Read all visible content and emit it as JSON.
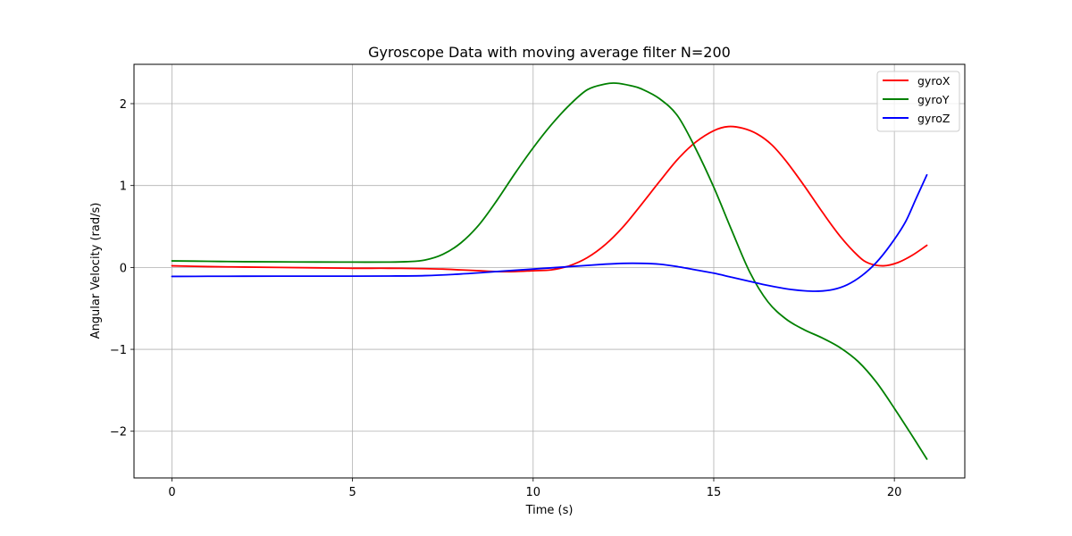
{
  "chart_data": {
    "type": "line",
    "title": "Gyroscope Data with moving average filter N=200",
    "xlabel": "Time (s)",
    "ylabel": "Angular Velocity (rad/s)",
    "xlim": [
      -1.05,
      21.95
    ],
    "ylim": [
      -2.57,
      2.48
    ],
    "xticks": [
      0,
      5,
      10,
      15,
      20
    ],
    "xtick_labels": [
      "0",
      "5",
      "10",
      "15",
      "20"
    ],
    "yticks": [
      -2,
      -1,
      0,
      1,
      2
    ],
    "ytick_labels": [
      "−2",
      "−1",
      "0",
      "1",
      "2"
    ],
    "grid": true,
    "legend_position": "top-right",
    "series": [
      {
        "name": "gyroX",
        "color": "#ff0000",
        "x": [
          0,
          1,
          2,
          3,
          4,
          5,
          6,
          7,
          7.5,
          8,
          8.5,
          9,
          9.5,
          10,
          10.5,
          11,
          11.5,
          12,
          12.5,
          13,
          13.5,
          14,
          14.5,
          15,
          15.4,
          15.8,
          16.2,
          16.6,
          17,
          17.5,
          18,
          18.5,
          19,
          19.3,
          19.7,
          20.1,
          20.5,
          20.9
        ],
        "y": [
          0.02,
          0.01,
          0.005,
          0.0,
          -0.005,
          -0.01,
          -0.01,
          -0.015,
          -0.02,
          -0.03,
          -0.04,
          -0.05,
          -0.05,
          -0.04,
          -0.03,
          0.02,
          0.12,
          0.28,
          0.5,
          0.77,
          1.05,
          1.32,
          1.53,
          1.67,
          1.72,
          1.7,
          1.63,
          1.5,
          1.3,
          1.0,
          0.68,
          0.38,
          0.14,
          0.05,
          0.02,
          0.06,
          0.15,
          0.27
        ]
      },
      {
        "name": "gyroY",
        "color": "#008000",
        "x": [
          0,
          1,
          2,
          3,
          4,
          5,
          6,
          6.5,
          7,
          7.5,
          8,
          8.5,
          9,
          9.5,
          10,
          10.5,
          11,
          11.5,
          12,
          12.3,
          12.7,
          13,
          13.5,
          14,
          14.5,
          15,
          15.5,
          16,
          16.5,
          17,
          17.5,
          18,
          18.5,
          19,
          19.5,
          20,
          20.5,
          20.9
        ],
        "y": [
          0.08,
          0.075,
          0.07,
          0.068,
          0.066,
          0.065,
          0.065,
          0.07,
          0.09,
          0.16,
          0.3,
          0.52,
          0.82,
          1.15,
          1.46,
          1.74,
          1.98,
          2.17,
          2.24,
          2.25,
          2.22,
          2.18,
          2.06,
          1.85,
          1.45,
          0.98,
          0.45,
          -0.06,
          -0.42,
          -0.63,
          -0.76,
          -0.86,
          -0.98,
          -1.15,
          -1.4,
          -1.72,
          -2.06,
          -2.34
        ]
      },
      {
        "name": "gyroZ",
        "color": "#0000ff",
        "x": [
          0,
          1,
          2,
          3,
          4,
          5,
          6,
          7,
          8,
          9,
          10,
          11,
          12,
          12.5,
          13,
          13.5,
          14,
          14.5,
          15,
          15.5,
          16,
          16.5,
          17,
          17.5,
          17.9,
          18.3,
          18.7,
          19.1,
          19.5,
          19.9,
          20.3,
          20.6,
          20.9
        ],
        "y": [
          -0.11,
          -0.108,
          -0.107,
          -0.106,
          -0.106,
          -0.106,
          -0.105,
          -0.1,
          -0.08,
          -0.05,
          -0.02,
          0.01,
          0.04,
          0.05,
          0.05,
          0.04,
          0.01,
          -0.03,
          -0.07,
          -0.12,
          -0.17,
          -0.22,
          -0.26,
          -0.285,
          -0.29,
          -0.27,
          -0.21,
          -0.1,
          0.06,
          0.28,
          0.55,
          0.84,
          1.13
        ]
      }
    ]
  }
}
